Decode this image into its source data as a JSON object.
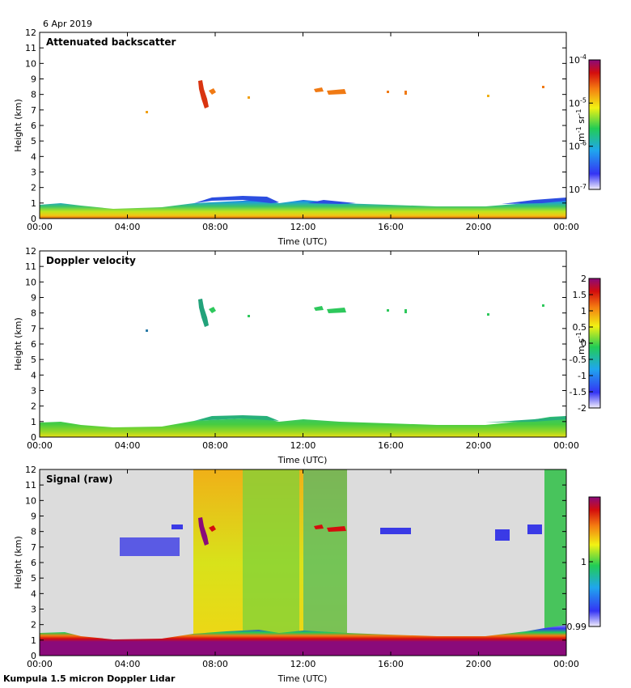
{
  "date": "6 Apr 2019",
  "footer": "Kumpula 1.5 micron Doppler Lidar",
  "colors": {
    "signal_background": "#dcdcdc",
    "colormap": [
      "#f3eefb",
      "#3434f4",
      "#1fa6ee",
      "#22cc55",
      "#f2f213",
      "#f47a11",
      "#d40d0d",
      "#8a0a7a"
    ]
  },
  "chart_data": [
    {
      "type": "heatmap",
      "title": "Attenuated backscatter",
      "xlabel": "Time (UTC)",
      "ylabel": "Height (km)",
      "x_ticks": [
        "00:00",
        "04:00",
        "08:00",
        "12:00",
        "16:00",
        "20:00",
        "00:00"
      ],
      "x_range_hours": [
        0,
        24
      ],
      "ylim": [
        0,
        12
      ],
      "y_ticks": [
        "0",
        "1",
        "2",
        "3",
        "4",
        "5",
        "6",
        "7",
        "8",
        "9",
        "10",
        "11",
        "12"
      ],
      "colorbar": {
        "scale": "log",
        "range": [
          1e-07,
          0.0001
        ],
        "tick_labels": [
          "10^-4",
          "10^-5",
          "10^-6",
          "10^-7"
        ],
        "unit": "m^-1 sr^-1"
      },
      "features": [
        {
          "feature": "boundary layer aerosol",
          "time_hours": [
            0,
            24
          ],
          "height_km": [
            0,
            1.2
          ],
          "value_range": [
            1e-07,
            5e-06
          ]
        },
        {
          "feature": "cirrus cloud",
          "time_hours": [
            7.2,
            7.6
          ],
          "height_km": [
            7.1,
            8.9
          ],
          "value": 3e-05
        },
        {
          "feature": "cirrus fragments",
          "time_hours": [
            12.5,
            14.2
          ],
          "height_km": [
            8.0,
            8.4
          ],
          "value": 2e-05
        }
      ]
    },
    {
      "type": "heatmap",
      "title": "Doppler velocity",
      "xlabel": "Time (UTC)",
      "ylabel": "Height (km)",
      "x_ticks": [
        "00:00",
        "04:00",
        "08:00",
        "12:00",
        "16:00",
        "20:00",
        "00:00"
      ],
      "x_range_hours": [
        0,
        24
      ],
      "ylim": [
        0,
        12
      ],
      "y_ticks": [
        "0",
        "1",
        "2",
        "3",
        "4",
        "5",
        "6",
        "7",
        "8",
        "9",
        "10",
        "11",
        "12"
      ],
      "colorbar": {
        "scale": "linear",
        "range": [
          -2,
          2
        ],
        "tick_labels": [
          "2",
          "1.5",
          "1",
          "0.5",
          "0",
          "-0.5",
          "-1",
          "-1.5",
          "-2"
        ],
        "unit": "m s^-1"
      },
      "features": [
        {
          "feature": "boundary layer",
          "time_hours": [
            0,
            24
          ],
          "height_km": [
            0,
            1.2
          ],
          "value_range": [
            -0.3,
            0.5
          ]
        },
        {
          "feature": "cirrus cloud",
          "time_hours": [
            7.2,
            7.6
          ],
          "height_km": [
            7.1,
            8.9
          ],
          "value_range": [
            -0.8,
            -0.2
          ]
        }
      ]
    },
    {
      "type": "heatmap",
      "title": "Signal (raw)",
      "xlabel": "Time (UTC)",
      "ylabel": "Height (km)",
      "x_ticks": [
        "00:00",
        "04:00",
        "08:00",
        "12:00",
        "16:00",
        "20:00",
        "00:00"
      ],
      "x_range_hours": [
        0,
        24
      ],
      "ylim": [
        0,
        12
      ],
      "y_ticks": [
        "0",
        "1",
        "2",
        "3",
        "4",
        "5",
        "6",
        "7",
        "8",
        "9",
        "10",
        "11",
        "12"
      ],
      "colorbar": {
        "scale": "linear",
        "range": [
          0.99,
          1.01
        ],
        "tick_labels": [
          "1",
          "0.99"
        ],
        "unit": ""
      },
      "features": [
        {
          "feature": "noisy signal periods",
          "time_hours": [
            [
              7.0,
              14.0
            ],
            [
              22.8,
              24.0
            ]
          ],
          "height_km": [
            0,
            12
          ]
        },
        {
          "feature": "boundary layer",
          "time_hours": [
            0,
            24
          ],
          "height_km": [
            0,
            1.5
          ]
        }
      ]
    }
  ]
}
